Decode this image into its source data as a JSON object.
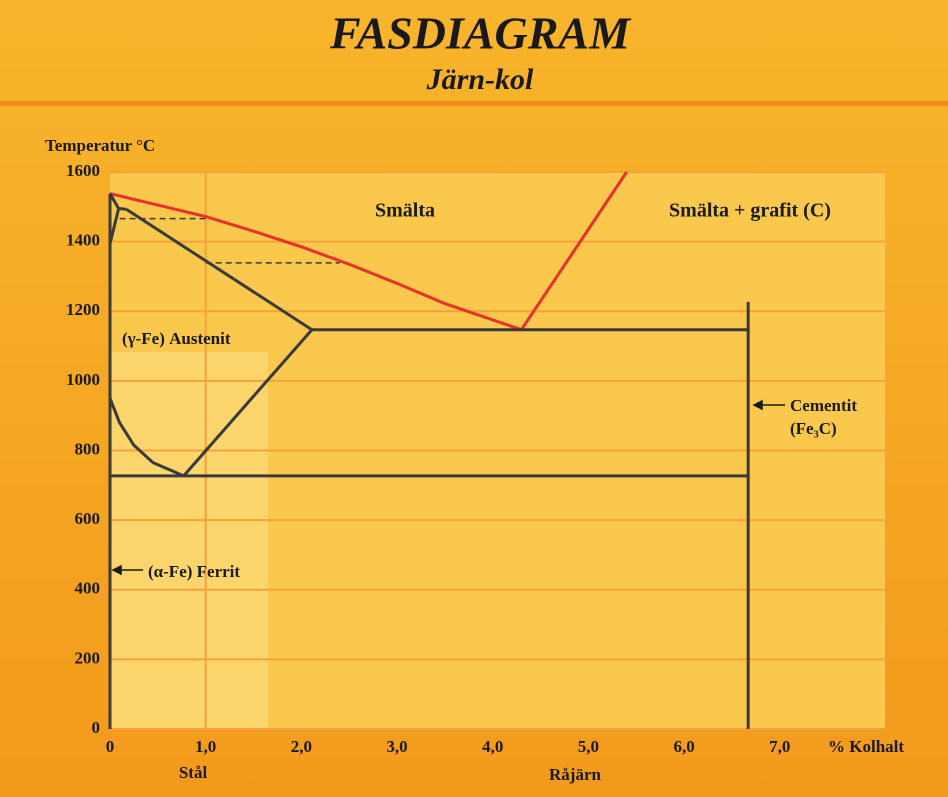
{
  "chart_data": {
    "type": "line",
    "title": "FASDIAGRAM",
    "subtitle": "Järn-kol",
    "y_label": "Temperatur °C",
    "x_label": "% Kolhalt",
    "xlim": [
      0,
      8.1
    ],
    "ylim": [
      0,
      1600
    ],
    "xticks": [
      0,
      {
        "value": 1,
        "label": "1,0"
      },
      {
        "value": 2,
        "label": "2,0"
      },
      {
        "value": 3,
        "label": "3,0"
      },
      {
        "value": 4,
        "label": "4,0"
      },
      {
        "value": 5,
        "label": "5,0"
      },
      {
        "value": 6,
        "label": "6,0"
      },
      {
        "value": 7,
        "label": "7,0"
      }
    ],
    "yticks": [
      0,
      200,
      400,
      600,
      800,
      1000,
      1200,
      1400,
      1600
    ],
    "grid": true,
    "grid_color": "#f4a23a",
    "reference_x": 1,
    "lines": [
      {
        "color": "#e8312a",
        "x": [
          0,
          0.5,
          1,
          1.5,
          2,
          2.5,
          3,
          3.5,
          4.3
        ],
        "y": [
          1538,
          1505,
          1472,
          1430,
          1385,
          1335,
          1280,
          1222,
          1147
        ]
      },
      {
        "color": "#e8312a",
        "x": [
          4.3,
          5.4
        ],
        "y": [
          1147,
          1600
        ]
      },
      {
        "color": "#3a3a3a",
        "x": [
          0.17,
          2.11
        ],
        "y": [
          1493,
          1147
        ]
      },
      {
        "color": "#3a3a3a",
        "x": [
          2.11,
          6.67
        ],
        "y": [
          1147,
          1147
        ]
      },
      {
        "color": "#3a3a3a",
        "x": [
          6.67,
          6.67
        ],
        "y": [
          0,
          1227
        ]
      },
      {
        "color": "#3a3a3a",
        "x": [
          0,
          0.1,
          0.25,
          0.45,
          0.77
        ],
        "y": [
          950,
          880,
          815,
          765,
          727
        ]
      },
      {
        "color": "#3a3a3a",
        "x": [
          0.77,
          2.11
        ],
        "y": [
          727,
          1147
        ]
      },
      {
        "color": "#3a3a3a",
        "x": [
          0,
          6.67
        ],
        "y": [
          727,
          727
        ]
      },
      {
        "color": "#3a3a3a",
        "x": [
          0,
          0.09,
          0.17
        ],
        "y": [
          1538,
          1495,
          1493
        ]
      },
      {
        "color": "#3a3a3a",
        "x": [
          0,
          0.09
        ],
        "y": [
          1394,
          1495
        ]
      },
      {
        "color": "#3a3a3a",
        "x": [
          0,
          0
        ],
        "y": [
          0,
          1538
        ]
      },
      {
        "color": "#3a3a3a",
        "dash": true,
        "x": [
          0.1,
          1
        ],
        "y": [
          1466,
          1466
        ]
      },
      {
        "color": "#3a3a3a",
        "dash": true,
        "x": [
          1,
          2.4
        ],
        "y": [
          1339,
          1339
        ]
      }
    ],
    "annotations": [
      "Smälta",
      "Smälta + grafit (C)",
      "(γ-Fe) Austenit",
      "Cementit",
      "(Fe₃C)",
      "(α-Fe) Ferrit",
      "Stål",
      "Råjärn"
    ]
  }
}
